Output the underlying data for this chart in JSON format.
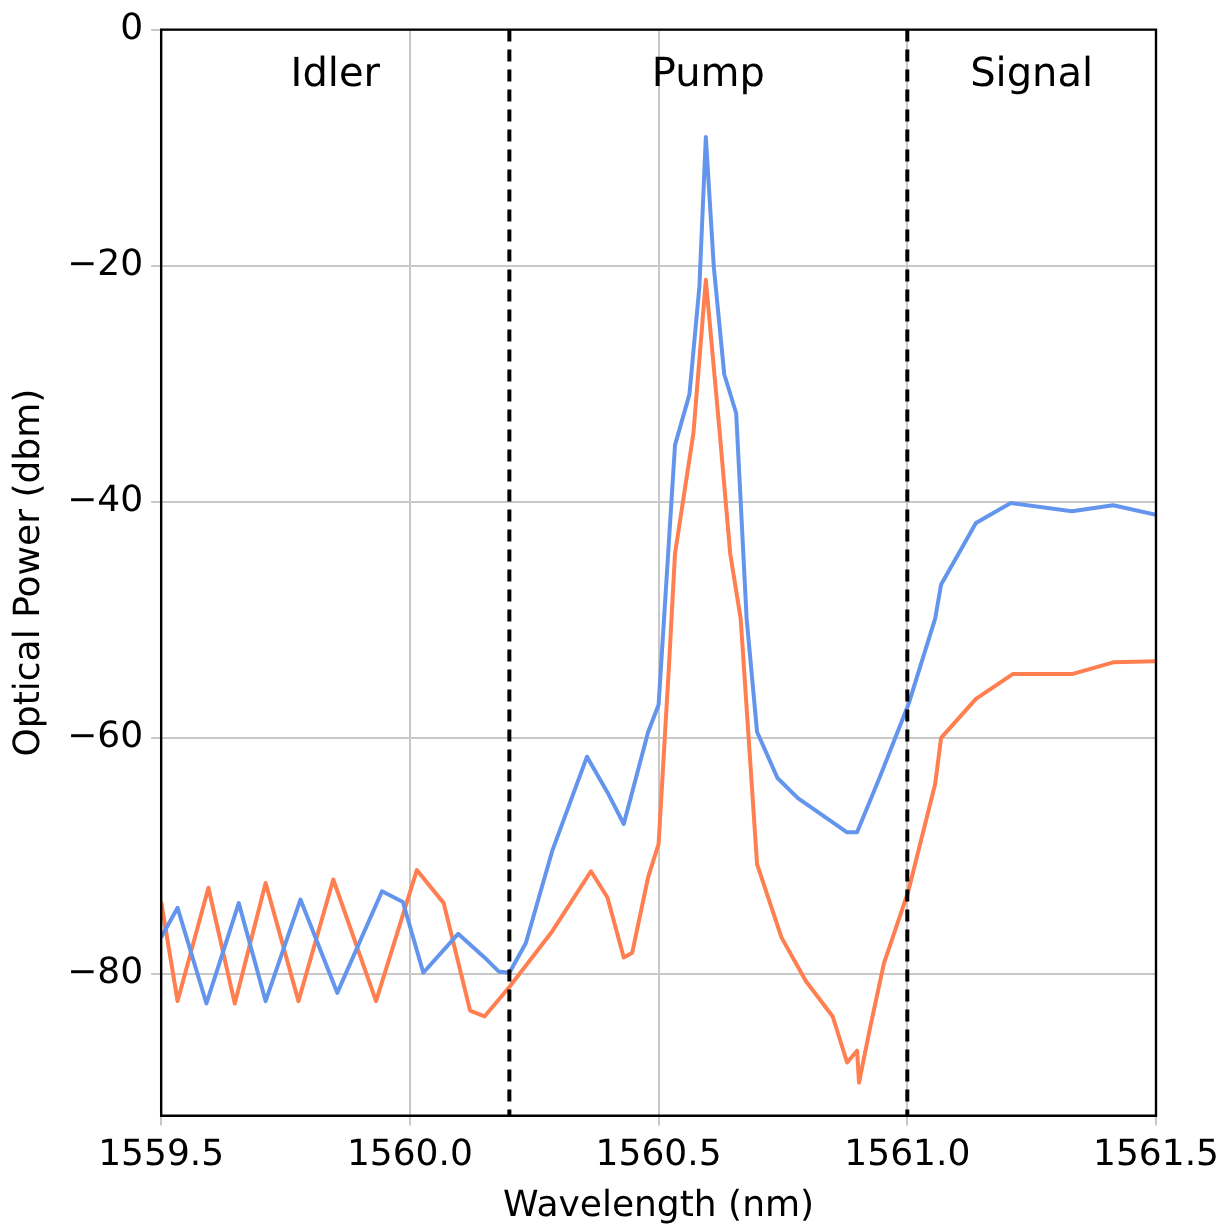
{
  "chart_data": {
    "type": "line",
    "xlabel": "Wavelength (nm)",
    "ylabel": "Optical Power (dbm)",
    "xlim": [
      1559.5,
      1561.5
    ],
    "xticks": [
      {
        "value": 1559.5,
        "label": "1559.5"
      },
      {
        "value": 1560,
        "label": "1560.0"
      },
      {
        "value": 1560.5,
        "label": "1560.5"
      },
      {
        "value": 1561,
        "label": "1561.0"
      },
      {
        "value": 1561.5,
        "label": "1561.5"
      }
    ],
    "ylim": [
      -92,
      0
    ],
    "yticks": [
      {
        "value": 0,
        "label": "0"
      },
      {
        "value": -20,
        "label": "−20"
      },
      {
        "value": -40,
        "label": "−40"
      },
      {
        "value": -60,
        "label": "−60"
      },
      {
        "value": -80,
        "label": "−80"
      }
    ],
    "grid": true,
    "legend": false,
    "marker": "none",
    "line_style": "solid",
    "series": [
      {
        "color": "#6495ed",
        "x": [
          1559.5,
          1559.533,
          1559.591,
          1559.656,
          1559.71,
          1559.78,
          1559.854,
          1559.944,
          1559.986,
          1560.027,
          1560.097,
          1560.15,
          1560.179,
          1560.2,
          1560.233,
          1560.286,
          1560.356,
          1560.397,
          1560.43,
          1560.479,
          1560.5,
          1560.533,
          1560.562,
          1560.582,
          1560.595,
          1560.611,
          1560.632,
          1560.656,
          1560.677,
          1560.698,
          1560.739,
          1560.78,
          1560.879,
          1560.899,
          1560.944,
          1561.002,
          1561.056,
          1561.068,
          1561.138,
          1561.208,
          1561.331,
          1561.414,
          1561.5
        ],
        "values": [
          -76.9,
          -74.4,
          -82.5,
          -74.0,
          -82.3,
          -73.7,
          -81.6,
          -73.0,
          -73.9,
          -79.9,
          -76.6,
          -78.6,
          -79.8,
          -79.9,
          -77.4,
          -69.6,
          -61.6,
          -64.6,
          -67.3,
          -59.5,
          -57.2,
          -35.2,
          -30.9,
          -21.8,
          -9.1,
          -20.1,
          -29.2,
          -32.5,
          -49.9,
          -59.5,
          -63.4,
          -65.1,
          -68.0,
          -68.0,
          -63.4,
          -57.2,
          -49.9,
          -47.0,
          -41.8,
          -40.1,
          -40.8,
          -40.3,
          -41.1
        ]
      },
      {
        "color": "#ff7f50",
        "x": [
          1559.5,
          1559.533,
          1559.595,
          1559.648,
          1559.71,
          1559.776,
          1559.846,
          1559.932,
          1560.014,
          1560.068,
          1560.121,
          1560.15,
          1560.2,
          1560.286,
          1560.364,
          1560.397,
          1560.43,
          1560.447,
          1560.479,
          1560.5,
          1560.521,
          1560.533,
          1560.57,
          1560.595,
          1560.623,
          1560.644,
          1560.665,
          1560.698,
          1560.747,
          1560.796,
          1560.85,
          1560.879,
          1560.899,
          1560.903,
          1560.924,
          1560.953,
          1561.002,
          1561.056,
          1561.068,
          1561.138,
          1561.212,
          1561.331,
          1561.414,
          1561.5
        ],
        "values": [
          -73.9,
          -82.3,
          -72.7,
          -82.5,
          -72.3,
          -82.3,
          -72.0,
          -82.3,
          -71.2,
          -74.0,
          -83.1,
          -83.6,
          -81.1,
          -76.4,
          -71.3,
          -73.5,
          -78.6,
          -78.2,
          -71.8,
          -69.0,
          -53.8,
          -44.4,
          -34.2,
          -21.2,
          -34.2,
          -44.4,
          -49.9,
          -70.7,
          -76.9,
          -80.6,
          -83.6,
          -87.5,
          -86.5,
          -89.2,
          -84.8,
          -79.1,
          -73.0,
          -63.9,
          -60.0,
          -56.7,
          -54.6,
          -54.6,
          -53.6,
          -53.5
        ]
      }
    ],
    "ref_lines": [
      {
        "axis": "x",
        "value": 1560.2,
        "color": "#000000",
        "line_style": "dashed"
      },
      {
        "axis": "x",
        "value": 1561.0,
        "color": "#000000",
        "line_style": "dashed"
      }
    ],
    "annotations": [
      "Idler",
      "Pump",
      "Signal"
    ]
  }
}
